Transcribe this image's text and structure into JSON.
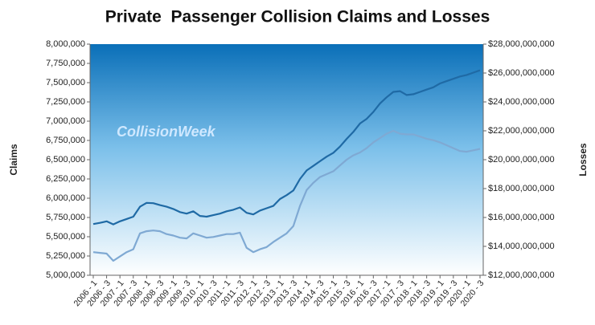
{
  "chart_data": {
    "type": "line",
    "title": "Private  Passenger Collision Claims and Losses",
    "annotation": "CollisionWeek",
    "ylabel": "Claims",
    "y2label": "Losses",
    "categories": [
      "2006 - 1",
      null,
      "2006 - 3",
      null,
      "2007 - 1",
      null,
      "2007 - 3",
      null,
      "2008 - 1",
      null,
      "2008 - 3",
      null,
      "2009 - 1",
      null,
      "2009 - 3",
      null,
      "2010 - 1",
      null,
      "2010 - 3",
      null,
      "2011 - 1",
      null,
      "2011 - 3",
      null,
      "2012 - 1",
      null,
      "2012 - 3",
      null,
      "2013 - 1",
      null,
      "2013 - 3",
      null,
      "2014 - 1",
      null,
      "2014 - 3",
      null,
      "2015 - 1",
      null,
      "2015 - 3",
      null,
      "2016 - 1",
      null,
      "2016 - 3",
      null,
      "2017 - 1",
      null,
      "2017 - 3",
      null,
      "2018 - 1",
      null,
      "2018 - 3",
      null,
      "2019 - 1",
      null,
      "2019 - 3",
      null,
      "2020 - 1",
      null,
      "2020 - 3"
    ],
    "series": [
      {
        "name": "Claims",
        "color": "#1f6aa5",
        "axis": "y",
        "values": [
          5665000,
          5680000,
          5700000,
          5660000,
          5700000,
          5730000,
          5760000,
          5890000,
          5940000,
          5935000,
          5910000,
          5890000,
          5860000,
          5820000,
          5800000,
          5830000,
          5770000,
          5760000,
          5780000,
          5800000,
          5830000,
          5850000,
          5880000,
          5810000,
          5790000,
          5840000,
          5870000,
          5900000,
          5990000,
          6040000,
          6100000,
          6250000,
          6360000,
          6420000,
          6480000,
          6540000,
          6590000,
          6670000,
          6770000,
          6860000,
          6970000,
          7030000,
          7120000,
          7230000,
          7310000,
          7380000,
          7390000,
          7340000,
          7350000,
          7380000,
          7410000,
          7440000,
          7490000,
          7520000,
          7550000,
          7580000,
          7600000,
          7630000,
          7660000
        ]
      },
      {
        "name": "Losses",
        "color": "#7fa9d3",
        "axis": "y2",
        "values": [
          13600000000,
          13550000000,
          13500000000,
          13000000000,
          13300000000,
          13600000000,
          13800000000,
          14900000000,
          15050000000,
          15100000000,
          15050000000,
          14850000000,
          14750000000,
          14600000000,
          14550000000,
          14900000000,
          14750000000,
          14600000000,
          14650000000,
          14750000000,
          14850000000,
          14850000000,
          14950000000,
          13900000000,
          13600000000,
          13800000000,
          13950000000,
          14300000000,
          14600000000,
          14900000000,
          15400000000,
          16800000000,
          17900000000,
          18400000000,
          18800000000,
          19000000000,
          19200000000,
          19600000000,
          20000000000,
          20300000000,
          20500000000,
          20800000000,
          21200000000,
          21500000000,
          21800000000,
          22000000000,
          21800000000,
          21750000000,
          21750000000,
          21600000000,
          21450000000,
          21350000000,
          21200000000,
          21000000000,
          20800000000,
          20600000000,
          20550000000,
          20650000000,
          20750000000
        ]
      }
    ],
    "ylim": [
      5000000,
      8000000
    ],
    "yticks": [
      {
        "value": 5000000,
        "label": "5,000,000"
      },
      {
        "value": 5250000,
        "label": "5,250,000"
      },
      {
        "value": 5500000,
        "label": "5,500,000"
      },
      {
        "value": 5750000,
        "label": "5,750,000"
      },
      {
        "value": 6000000,
        "label": "6,000,000"
      },
      {
        "value": 6250000,
        "label": "6,250,000"
      },
      {
        "value": 6500000,
        "label": "6,500,000"
      },
      {
        "value": 6750000,
        "label": "6,750,000"
      },
      {
        "value": 7000000,
        "label": "7,000,000"
      },
      {
        "value": 7250000,
        "label": "7,250,000"
      },
      {
        "value": 7500000,
        "label": "7,500,000"
      },
      {
        "value": 7750000,
        "label": "7,750,000"
      },
      {
        "value": 8000000,
        "label": "8,000,000"
      }
    ],
    "y2lim": [
      12000000000,
      28000000000
    ],
    "y2ticks": [
      {
        "value": 12000000000,
        "label": "$12,000,000,000"
      },
      {
        "value": 14000000000,
        "label": "$14,000,000,000"
      },
      {
        "value": 16000000000,
        "label": "$16,000,000,000"
      },
      {
        "value": 18000000000,
        "label": "$18,000,000,000"
      },
      {
        "value": 20000000000,
        "label": "$20,000,000,000"
      },
      {
        "value": 22000000000,
        "label": "$22,000,000,000"
      },
      {
        "value": 24000000000,
        "label": "$24,000,000,000"
      },
      {
        "value": 26000000000,
        "label": "$26,000,000,000"
      },
      {
        "value": 28000000000,
        "label": "$28,000,000,000"
      }
    ],
    "grid": false
  }
}
